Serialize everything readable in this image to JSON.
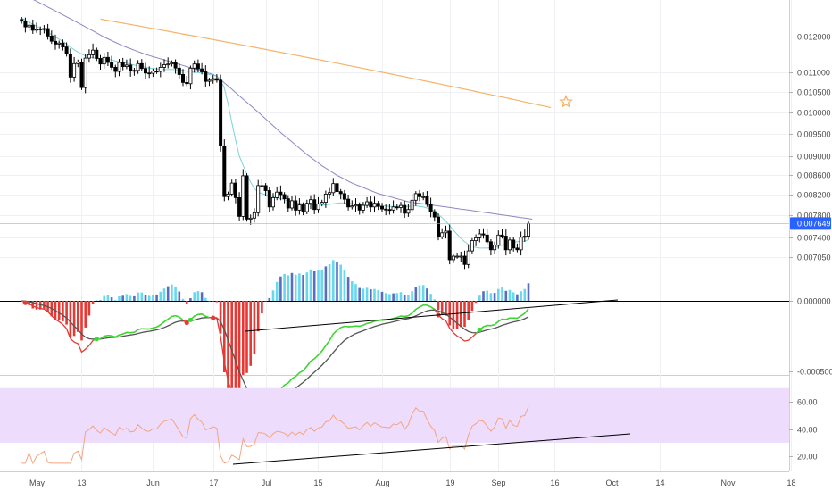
{
  "chart_data": {
    "type": "candlestick",
    "colors": {
      "up": "#ffffff",
      "down": "#000000",
      "wick": "#000000",
      "ma_fast": "#7dd3d8",
      "ma_mid": "#8e86c4",
      "ma_slow": "#f6b26b",
      "last_price_bg": "#2962ff",
      "macd_signal": "#e53935",
      "macd_line_up": "#33dd33",
      "macd_hist_neg": "#e53935",
      "macd_hist_pos_a": "#66d9ef",
      "macd_hist_pos_b": "#5c6bc0",
      "rsi_band": "#eddcfb",
      "rsi_line": "#f4a582",
      "trendline": "#000000"
    },
    "x_axis_labels": [
      "May",
      "13",
      "Jun",
      "17",
      "Jul",
      "15",
      "Aug",
      "19",
      "Sep",
      "16",
      "Oct",
      "14",
      "Nov",
      "18"
    ],
    "price_axis": {
      "scale": "log",
      "ticks": [
        "0.012000",
        "0.011000",
        "0.010500",
        "0.010000",
        "0.009500",
        "0.009000",
        "0.008600",
        "0.008200",
        "0.007800",
        "0.007400",
        "0.007050"
      ],
      "last_price": "0.007649"
    },
    "macd_axis": {
      "ticks": [
        "0.000000",
        "-0.000500"
      ]
    },
    "rsi_axis": {
      "ticks": [
        "60.00",
        "40.00",
        "20.00"
      ],
      "band": [
        30,
        70
      ]
    },
    "price_series": {
      "start_date": "2019-04-27",
      "interval": "1d",
      "close": [
        0.01245,
        0.01228,
        0.01233,
        0.01218,
        0.01221,
        0.01222,
        0.01223,
        0.01201,
        0.01186,
        0.01178,
        0.01181,
        0.0117,
        0.0115,
        0.01088,
        0.01124,
        0.01128,
        0.01061,
        0.01139,
        0.01148,
        0.01161,
        0.01138,
        0.01123,
        0.01141,
        0.01127,
        0.01114,
        0.01103,
        0.01127,
        0.01116,
        0.0112,
        0.01104,
        0.01106,
        0.01124,
        0.01111,
        0.01099,
        0.01098,
        0.01104,
        0.01103,
        0.01114,
        0.01121,
        0.01123,
        0.01126,
        0.01112,
        0.01095,
        0.01074,
        0.01071,
        0.01112,
        0.01123,
        0.0111,
        0.01102,
        0.01077,
        0.0108,
        0.01084,
        0.0108,
        0.00922,
        0.00816,
        0.00821,
        0.00843,
        0.00814,
        0.00778,
        0.00858,
        0.00773,
        0.00775,
        0.00785,
        0.00838,
        0.00838,
        0.00828,
        0.00796,
        0.00814,
        0.00825,
        0.0082,
        0.00812,
        0.00794,
        0.00808,
        0.0079,
        0.008,
        0.00787,
        0.00803,
        0.0081,
        0.00791,
        0.00802,
        0.00805,
        0.00821,
        0.00824,
        0.00842,
        0.00826,
        0.00822,
        0.00811,
        0.00796,
        0.00798,
        0.008,
        0.0079,
        0.00799,
        0.00806,
        0.00796,
        0.00803,
        0.00797,
        0.00792,
        0.00791,
        0.0079,
        0.00796,
        0.00795,
        0.00799,
        0.00784,
        0.00791,
        0.00809,
        0.00822,
        0.00816,
        0.00816,
        0.00801,
        0.00787,
        0.00777,
        0.00741,
        0.00748,
        0.00751,
        0.00701,
        0.00707,
        0.00707,
        0.00707,
        0.00693,
        0.00716,
        0.00734,
        0.00739,
        0.00746,
        0.00744,
        0.00732,
        0.00718,
        0.00726,
        0.00744,
        0.00742,
        0.00718,
        0.00735,
        0.00721,
        0.00718,
        0.0074,
        0.00742,
        0.00765
      ]
    },
    "ma_fast": {
      "start_date": "2019-04-27",
      "interval": "1d",
      "values": [
        0.01255,
        0.01248,
        0.01242,
        0.01236,
        0.0123,
        0.01224,
        0.01218,
        0.01212,
        0.01205,
        0.01198,
        0.01192,
        0.01186,
        0.01178,
        0.0117,
        0.01162,
        0.01156,
        0.0115,
        0.01145,
        0.01142,
        0.0114,
        0.01139,
        0.01138,
        0.01137,
        0.01136,
        0.01134,
        0.01131,
        0.01129,
        0.01127,
        0.01125,
        0.01123,
        0.0112,
        0.01118,
        0.01116,
        0.01114,
        0.01112,
        0.01111,
        0.0111,
        0.01109,
        0.01108,
        0.01108,
        0.01108,
        0.01108,
        0.01107,
        0.01106,
        0.01104,
        0.01102,
        0.01101,
        0.011,
        0.01099,
        0.01097,
        0.01095,
        0.01093,
        0.01091,
        0.0108,
        0.0106,
        0.0102,
        0.00975,
        0.00935,
        0.009,
        0.0088,
        0.00862,
        0.00845,
        0.00832,
        0.00825,
        0.00822,
        0.0082,
        0.00818,
        0.00816,
        0.00814,
        0.00812,
        0.0081,
        0.00808,
        0.00806,
        0.00804,
        0.00803,
        0.00802,
        0.00801,
        0.008,
        0.00799,
        0.00799,
        0.008,
        0.008,
        0.00801,
        0.00802,
        0.00803,
        0.00804,
        0.00804,
        0.00803,
        0.00802,
        0.00802,
        0.00801,
        0.008,
        0.008,
        0.008,
        0.00799,
        0.00799,
        0.00798,
        0.00798,
        0.00797,
        0.00797,
        0.00797,
        0.00797,
        0.00797,
        0.00797,
        0.00798,
        0.00798,
        0.00797,
        0.00796,
        0.00794,
        0.00792,
        0.00788,
        0.00782,
        0.00776,
        0.00769,
        0.00761,
        0.00753,
        0.00745,
        0.00738,
        0.00732,
        0.00727,
        0.00724,
        0.00722,
        0.00721,
        0.00721,
        0.00721,
        0.00722,
        0.00723,
        0.00724,
        0.00726,
        0.00728,
        0.0073,
        0.00731,
        0.00732,
        0.00733,
        0.00733,
        0.00736
      ]
    },
    "ma_mid": {
      "start_date": "2019-04-27",
      "interval": "1d",
      "values": [
        0.0133,
        0.01324,
        0.01318,
        0.01312,
        0.01306,
        0.013,
        0.01294,
        0.01288,
        0.01282,
        0.01276,
        0.0127,
        0.01264,
        0.01258,
        0.01252,
        0.01246,
        0.0124,
        0.01234,
        0.01228,
        0.01222,
        0.01216,
        0.0121,
        0.01204,
        0.01198,
        0.01193,
        0.01188,
        0.01183,
        0.01178,
        0.01173,
        0.01169,
        0.01165,
        0.01161,
        0.01157,
        0.01153,
        0.01149,
        0.01146,
        0.01143,
        0.0114,
        0.01137,
        0.01134,
        0.01131,
        0.01128,
        0.01125,
        0.01122,
        0.01119,
        0.01116,
        0.01113,
        0.0111,
        0.01107,
        0.01104,
        0.01101,
        0.01098,
        0.01095,
        0.0109,
        0.01082,
        0.01073,
        0.01065,
        0.01057,
        0.01048,
        0.0104,
        0.01032,
        0.01024,
        0.01016,
        0.01008,
        0.01,
        0.00992,
        0.00984,
        0.00976,
        0.00968,
        0.0096,
        0.00952,
        0.00945,
        0.00938,
        0.00931,
        0.00924,
        0.00917,
        0.0091,
        0.00903,
        0.00897,
        0.00891,
        0.00885,
        0.00879,
        0.00874,
        0.00869,
        0.00864,
        0.00859,
        0.00855,
        0.00851,
        0.00847,
        0.00843,
        0.0084,
        0.00837,
        0.00834,
        0.00831,
        0.00828,
        0.00825,
        0.00822,
        0.0082,
        0.00818,
        0.00816,
        0.00814,
        0.00812,
        0.0081,
        0.00808,
        0.00806,
        0.00805,
        0.00804,
        0.00803,
        0.00802,
        0.00801,
        0.008,
        0.00799,
        0.00798,
        0.00797,
        0.00796,
        0.00795,
        0.00794,
        0.00793,
        0.00792,
        0.00791,
        0.0079,
        0.00789,
        0.00788,
        0.00787,
        0.00786,
        0.00785,
        0.00784,
        0.00783,
        0.00782,
        0.00781,
        0.0078,
        0.00779,
        0.00778,
        0.00777,
        0.00776,
        0.00775,
        0.00774,
        0.00773
      ]
    },
    "ma_slow": {
      "start_date": "2019-05-18",
      "interval": "1d",
      "values": [
        0.01251,
        0.01249,
        0.01247,
        0.01245,
        0.01243,
        0.01241,
        0.01239,
        0.01237,
        0.01235,
        0.01233,
        0.01231,
        0.01229,
        0.01227,
        0.01225,
        0.01223,
        0.01221,
        0.01219,
        0.01217,
        0.01215,
        0.01213,
        0.01211,
        0.01209,
        0.01207,
        0.01205,
        0.01203,
        0.01201,
        0.01199,
        0.01197,
        0.01195,
        0.01193,
        0.01191,
        0.01189,
        0.01187,
        0.01185,
        0.01183,
        0.01181,
        0.01179,
        0.01177,
        0.01175,
        0.01173,
        0.01171,
        0.01169,
        0.01167,
        0.01165,
        0.01163,
        0.01161,
        0.01159,
        0.01157,
        0.01155,
        0.01153,
        0.01151,
        0.01149,
        0.01147,
        0.01145,
        0.01143,
        0.01141,
        0.01139,
        0.01137,
        0.01135,
        0.01133,
        0.01131,
        0.01129,
        0.01127,
        0.01125,
        0.01123,
        0.01121,
        0.01119,
        0.01117,
        0.01115,
        0.01113,
        0.01111,
        0.01109,
        0.01107,
        0.01105,
        0.01103,
        0.01101,
        0.01099,
        0.01097,
        0.01095,
        0.01093,
        0.01091,
        0.01089,
        0.01087,
        0.01085,
        0.01083,
        0.01081,
        0.01079,
        0.01077,
        0.01075,
        0.01073,
        0.01071,
        0.01069,
        0.01067,
        0.01065,
        0.01063,
        0.01061,
        0.01059,
        0.01057,
        0.01055,
        0.01053,
        0.01051,
        0.01049,
        0.01047,
        0.01045,
        0.01043,
        0.01041,
        0.01039,
        0.01037,
        0.01035,
        0.01033,
        0.01031,
        0.01029,
        0.01027,
        0.01025,
        0.01023,
        0.01021,
        0.01019,
        0.01017,
        0.01015,
        0.01013,
        0.01011
      ]
    },
    "markers": [
      {
        "type": "star",
        "date": "2019-09-19",
        "price": 0.01025,
        "color": "#f6b26b"
      }
    ]
  }
}
